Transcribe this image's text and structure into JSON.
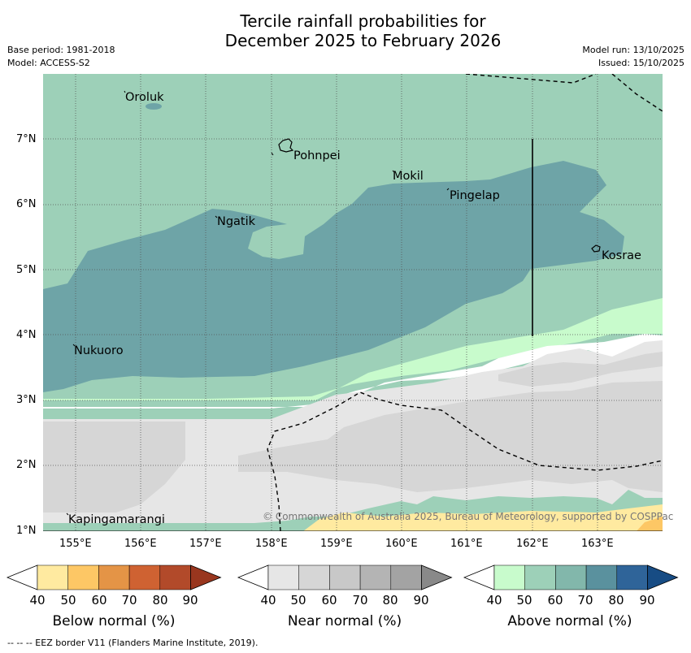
{
  "title": {
    "line1": "Tercile rainfall probabilities for",
    "line2": "December 2025 to February 2026"
  },
  "meta": {
    "base_period": "Base period: 1981-2018",
    "model": "Model: ACCESS-S2",
    "model_run": "Model run: 13/10/2025",
    "issued": "Issued: 15/10/2025"
  },
  "map": {
    "islands": [
      "Oroluk",
      "Pohnpei",
      "Mokil",
      "Pingelap",
      "Ngatik",
      "Kosrae",
      "Nukuoro",
      "Kapingamarangi"
    ],
    "lat_ticks": [
      "7°N",
      "6°N",
      "5°N",
      "4°N",
      "3°N",
      "2°N",
      "1°N"
    ],
    "lon_ticks": [
      "155°E",
      "156°E",
      "157°E",
      "158°E",
      "159°E",
      "160°E",
      "161°E",
      "162°E",
      "163°E"
    ],
    "copyright": "© Commonwealth of Australia 2025, Bureau of Meteorology, supported by COSPPac"
  },
  "colorbars": [
    {
      "title": "Below normal (%)",
      "ticks": [
        "40",
        "50",
        "60",
        "70",
        "80",
        "90"
      ],
      "colors": [
        "#ffffff",
        "#ffeaa0",
        "#fdc765",
        "#e49446",
        "#cf6232",
        "#b24a2a",
        "#99361e"
      ]
    },
    {
      "title": "Near normal (%)",
      "ticks": [
        "40",
        "50",
        "60",
        "70",
        "80",
        "90"
      ],
      "colors": [
        "#ffffff",
        "#e6e6e6",
        "#d6d6d6",
        "#c8c8c8",
        "#b4b4b4",
        "#a3a3a3",
        "#898989"
      ]
    },
    {
      "title": "Above normal (%)",
      "ticks": [
        "40",
        "50",
        "60",
        "70",
        "80",
        "90"
      ],
      "colors": [
        "#ffffff",
        "#c8fbcc",
        "#9dd0b8",
        "#82b7ab",
        "#5a919e",
        "#2f6499",
        "#174c84"
      ]
    }
  ],
  "footer": "--  --  -- EEZ border V11 (Flanders Marine Institute, 2019)."
}
